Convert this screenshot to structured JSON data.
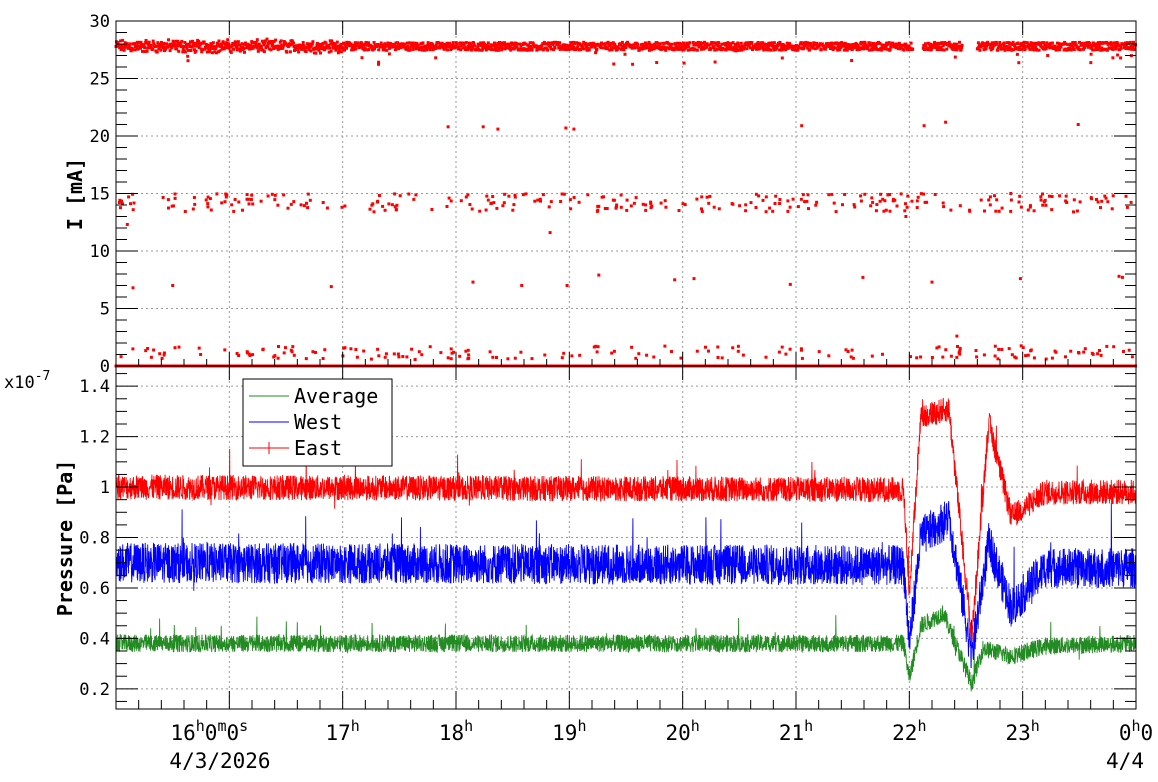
{
  "chart_data": [
    {
      "type": "scatter",
      "panel": "top",
      "ylabel": "I [mA]",
      "ylim": [
        0,
        30
      ],
      "yticks": [
        "0",
        "5",
        "10",
        "15",
        "20",
        "25",
        "30"
      ],
      "xlim_hours": [
        15.0,
        24.0
      ],
      "grid": true,
      "series": [
        {
          "color": "#ff0000",
          "bands": [
            {
              "level_mA": 27.8,
              "from_hour": 15.0,
              "to_hour": 24.0,
              "gaps_hours": [
                [
                  22.03,
                  22.12
                ],
                [
                  22.47,
                  22.6
                ]
              ],
              "density": "continuous"
            },
            {
              "level_mA": 14.2,
              "from_hour": 15.0,
              "to_hour": 24.0,
              "density": "sparse"
            },
            {
              "level_mA": 0.0,
              "from_hour": 15.0,
              "to_hour": 24.0,
              "density": "continuous"
            },
            {
              "level_mA": 0.8,
              "from_hour": 15.0,
              "to_hour": 24.0,
              "density": "sparse"
            }
          ],
          "points": [
            {
              "hour": 15.15,
              "mA": 6.8
            },
            {
              "hour": 15.5,
              "mA": 7.0
            },
            {
              "hour": 15.1,
              "mA": 12.3
            },
            {
              "hour": 16.9,
              "mA": 6.9
            },
            {
              "hour": 17.93,
              "mA": 20.8
            },
            {
              "hour": 18.24,
              "mA": 20.8
            },
            {
              "hour": 18.37,
              "mA": 20.6
            },
            {
              "hour": 18.15,
              "mA": 7.3
            },
            {
              "hour": 18.58,
              "mA": 7.0
            },
            {
              "hour": 18.83,
              "mA": 11.6
            },
            {
              "hour": 18.97,
              "mA": 20.7
            },
            {
              "hour": 19.04,
              "mA": 20.6
            },
            {
              "hour": 18.98,
              "mA": 7.0
            },
            {
              "hour": 19.26,
              "mA": 7.9
            },
            {
              "hour": 19.93,
              "mA": 7.5
            },
            {
              "hour": 20.1,
              "mA": 7.6
            },
            {
              "hour": 20.95,
              "mA": 7.1
            },
            {
              "hour": 21.05,
              "mA": 20.9
            },
            {
              "hour": 21.59,
              "mA": 7.7
            },
            {
              "hour": 22.13,
              "mA": 20.9
            },
            {
              "hour": 22.2,
              "mA": 7.3
            },
            {
              "hour": 22.32,
              "mA": 21.2
            },
            {
              "hour": 22.42,
              "mA": 2.6
            },
            {
              "hour": 22.98,
              "mA": 7.6
            },
            {
              "hour": 23.49,
              "mA": 21.0
            },
            {
              "hour": 23.85,
              "mA": 7.8
            },
            {
              "hour": 23.88,
              "mA": 7.7
            },
            {
              "hour": 21.97,
              "mA": 13.0
            },
            {
              "hour": 21.96,
              "mA": 13.5
            },
            {
              "hour": 21.98,
              "mA": 13.8
            }
          ]
        }
      ]
    },
    {
      "type": "line",
      "panel": "bottom",
      "ylabel": "Pressure [Pa]",
      "exponent_label": "x10",
      "exponent": "-7",
      "ylim": [
        0.12,
        1.48
      ],
      "yticks": [
        "0.2",
        "0.4",
        "0.6",
        "0.8",
        "1",
        "1.2",
        "1.4"
      ],
      "xlim_hours": [
        15.0,
        24.0
      ],
      "grid": true,
      "legend": {
        "placement": "top-left",
        "entries": [
          "Average",
          "West",
          "East"
        ]
      },
      "series": [
        {
          "name": "Average",
          "color": "#228b22",
          "noise_amplitude": 0.035,
          "keypoints": [
            {
              "hour": 15.0,
              "value": 0.38
            },
            {
              "hour": 21.95,
              "value": 0.38
            },
            {
              "hour": 22.0,
              "value": 0.24
            },
            {
              "hour": 22.1,
              "value": 0.45
            },
            {
              "hour": 22.3,
              "value": 0.5
            },
            {
              "hour": 22.55,
              "value": 0.22
            },
            {
              "hour": 22.65,
              "value": 0.36
            },
            {
              "hour": 22.9,
              "value": 0.33
            },
            {
              "hour": 23.2,
              "value": 0.37
            },
            {
              "hour": 24.0,
              "value": 0.38
            }
          ]
        },
        {
          "name": "West",
          "color": "#0000ff",
          "noise_amplitude": 0.08,
          "keypoints": [
            {
              "hour": 15.0,
              "value": 0.7
            },
            {
              "hour": 21.95,
              "value": 0.69
            },
            {
              "hour": 22.0,
              "value": 0.38
            },
            {
              "hour": 22.1,
              "value": 0.8
            },
            {
              "hour": 22.35,
              "value": 0.88
            },
            {
              "hour": 22.55,
              "value": 0.33
            },
            {
              "hour": 22.7,
              "value": 0.78
            },
            {
              "hour": 22.9,
              "value": 0.52
            },
            {
              "hour": 23.2,
              "value": 0.68
            },
            {
              "hour": 24.0,
              "value": 0.68
            }
          ]
        },
        {
          "name": "East",
          "color": "#ff0000",
          "noise_amplitude": 0.05,
          "keypoints": [
            {
              "hour": 15.0,
              "value": 1.0
            },
            {
              "hour": 21.95,
              "value": 0.99
            },
            {
              "hour": 22.0,
              "value": 0.58
            },
            {
              "hour": 22.1,
              "value": 1.28
            },
            {
              "hour": 22.35,
              "value": 1.31
            },
            {
              "hour": 22.55,
              "value": 0.4
            },
            {
              "hour": 22.7,
              "value": 1.26
            },
            {
              "hour": 22.9,
              "value": 0.88
            },
            {
              "hour": 23.2,
              "value": 0.98
            },
            {
              "hour": 24.0,
              "value": 0.98
            }
          ]
        }
      ]
    }
  ],
  "time_axis": {
    "hour_ticks": [
      {
        "hour": 16,
        "label": "16",
        "sup": "h",
        "suffix": "0",
        "sup2": "m",
        "suffix2": "0",
        "sup3": "s"
      },
      {
        "hour": 17,
        "label": "17",
        "sup": "h"
      },
      {
        "hour": 18,
        "label": "18",
        "sup": "h"
      },
      {
        "hour": 19,
        "label": "19",
        "sup": "h"
      },
      {
        "hour": 20,
        "label": "20",
        "sup": "h"
      },
      {
        "hour": 21,
        "label": "21",
        "sup": "h"
      },
      {
        "hour": 22,
        "label": "22",
        "sup": "h"
      },
      {
        "hour": 23,
        "label": "23",
        "sup": "h"
      },
      {
        "hour": 24,
        "label": "0",
        "sup": "h",
        "suffix": "0"
      }
    ],
    "date_start": "4/3/2026",
    "date_end": "4/4"
  }
}
